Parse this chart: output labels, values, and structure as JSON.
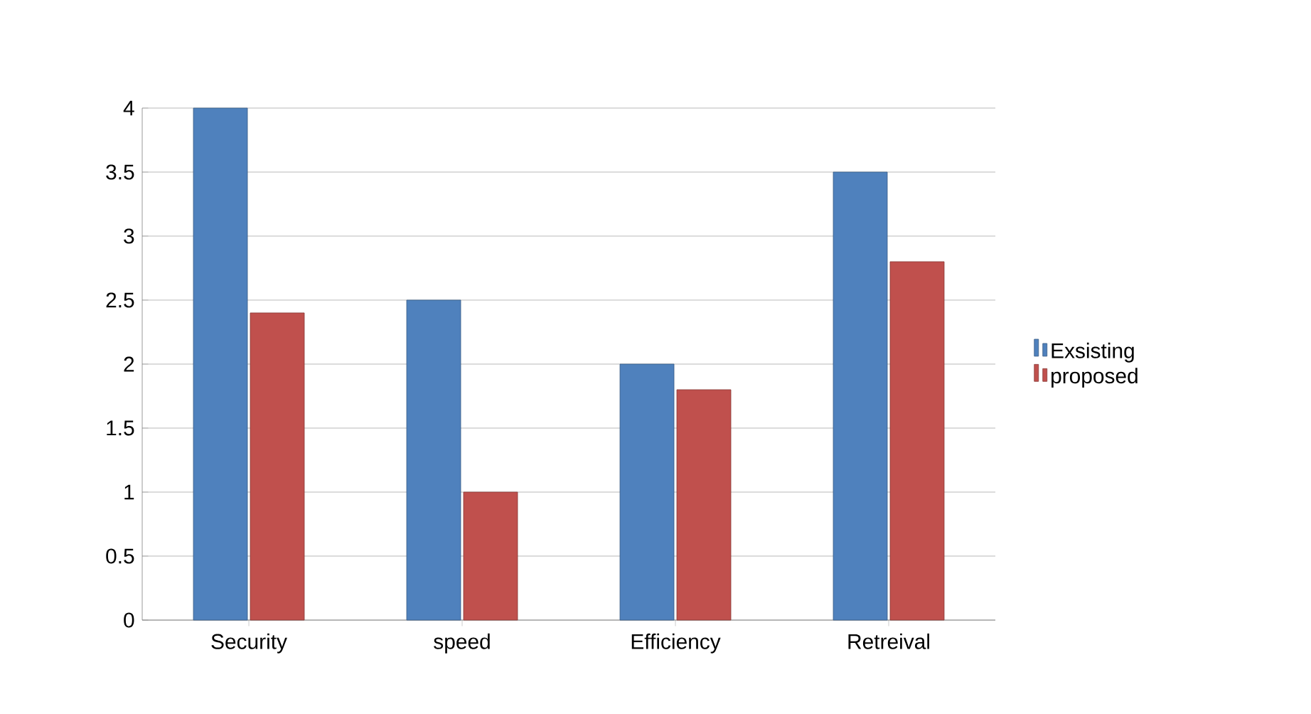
{
  "chart_data": {
    "type": "bar",
    "categories": [
      "Security",
      "speed",
      "Efficiency",
      "Retreival"
    ],
    "series": [
      {
        "name": "Exsisting",
        "color": "#4f81bd",
        "values": [
          4,
          2.5,
          2,
          3.5
        ]
      },
      {
        "name": "proposed",
        "color": "#c0504d",
        "values": [
          2.4,
          1.0,
          1.8,
          2.8
        ]
      }
    ],
    "ylim": [
      0,
      4
    ],
    "yticks": [
      0,
      0.5,
      1,
      1.5,
      2,
      2.5,
      3,
      3.5,
      4
    ],
    "grid": "y",
    "legend": "right"
  }
}
